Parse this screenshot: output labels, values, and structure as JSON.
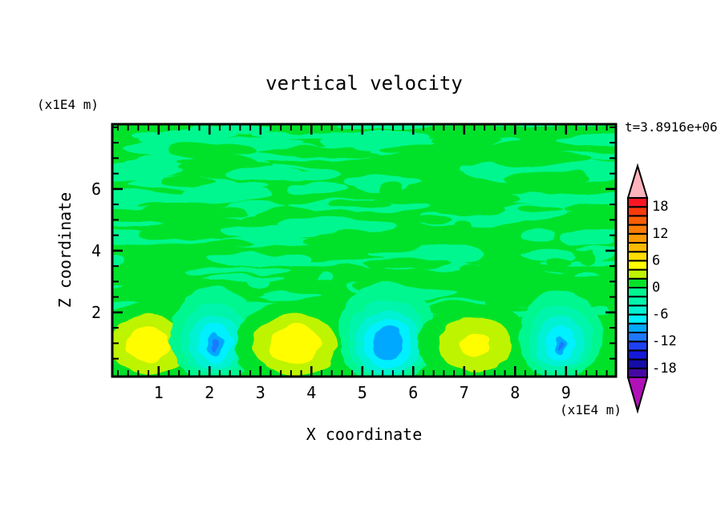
{
  "title": "vertical velocity",
  "time_label": "t=3.8916e+06",
  "axes": {
    "x": {
      "label": "X coordinate",
      "unit": "(x1E4 m)",
      "major_ticks": [
        1,
        2,
        3,
        4,
        5,
        6,
        7,
        8,
        9
      ],
      "minor_step": 0.2,
      "range": [
        0.09,
        9.98
      ]
    },
    "z": {
      "label": "Z coordinate",
      "unit": "(x1E4 m)",
      "major_ticks": [
        2,
        4,
        6
      ],
      "minor_step": 0.5,
      "range": [
        -0.08,
        8.1
      ]
    }
  },
  "colorbar": {
    "min": -20,
    "max": 20,
    "step": 2,
    "tick_labels": [
      18,
      12,
      6,
      0,
      -6,
      -12,
      -18
    ],
    "colors": [
      "#4609A5",
      "#150DA8",
      "#1518D7",
      "#1E41F5",
      "#1E78FF",
      "#00A8FF",
      "#00F0FF",
      "#00F2D2",
      "#00F5AC",
      "#00F78F",
      "#06E22A",
      "#BEF400",
      "#FFFD00",
      "#FFDE00",
      "#FFBB00",
      "#FE9B01",
      "#FC7D01",
      "#FB5E02",
      "#F83A0C",
      "#FA1723"
    ],
    "under_color": "#B011B8",
    "over_color": "#FFB3BC"
  },
  "chart_data": {
    "type": "filled-contour",
    "field": "vertical velocity",
    "contour_interval": 2,
    "level_min": -20,
    "level_max": 20,
    "background_level_band": [
      0,
      2
    ],
    "background_color": "#06E22A",
    "mottle_level_band": [
      -2,
      0
    ],
    "mottle_color": "#00F78F",
    "features": [
      {
        "name": "updraft-1",
        "x": 0.8,
        "z": 0.95,
        "rings": [
          {
            "level": 0,
            "rx": 1.1,
            "rz": 1.35
          },
          {
            "level": 2,
            "rx": 0.76,
            "rz": 0.94
          },
          {
            "level": 4,
            "rx": 0.44,
            "rz": 0.55
          }
        ]
      },
      {
        "name": "downdraft-1",
        "x": 2.1,
        "z": 1.0,
        "rings": [
          {
            "level": -2,
            "rx": 0.87,
            "rz": 1.56,
            "dz": 0.25
          },
          {
            "level": -4,
            "rx": 0.66,
            "rz": 1.17,
            "dz": 0.15
          },
          {
            "level": -6,
            "rx": 0.5,
            "rz": 0.88,
            "dz": 0.05
          },
          {
            "level": -8,
            "rx": 0.33,
            "rz": 0.64
          },
          {
            "level": -10,
            "rx": 0.16,
            "rz": 0.42,
            "dz": -0.05
          },
          {
            "level": -12,
            "rx": 0.065,
            "rz": 0.26,
            "dz": -0.05
          }
        ]
      },
      {
        "name": "updraft-2",
        "x": 3.68,
        "z": 0.95,
        "rings": [
          {
            "level": 0,
            "rx": 1.18,
            "rz": 1.43
          },
          {
            "level": 2,
            "rx": 0.82,
            "rz": 0.99
          },
          {
            "level": 4,
            "rx": 0.5,
            "rz": 0.62
          }
        ]
      },
      {
        "name": "downdraft-2",
        "x": 5.49,
        "z": 1.0,
        "rings": [
          {
            "level": -2,
            "rx": 0.94,
            "rz": 1.69,
            "dz": 0.3
          },
          {
            "level": -4,
            "rx": 0.76,
            "rz": 1.3,
            "dz": 0.15
          },
          {
            "level": -6,
            "rx": 0.63,
            "rz": 1.04,
            "dz": 0.05
          },
          {
            "level": -8,
            "rx": 0.47,
            "rz": 0.83
          },
          {
            "level": -10,
            "rx": 0.3,
            "rz": 0.6,
            "dz": -0.03
          }
        ]
      },
      {
        "name": "updraft-3",
        "x": 7.22,
        "z": 0.95,
        "rings": [
          {
            "level": 0,
            "rx": 1.13,
            "rz": 1.35
          },
          {
            "level": 2,
            "rx": 0.72,
            "rz": 0.88
          },
          {
            "level": 4,
            "rx": 0.29,
            "rz": 0.37
          }
        ]
      },
      {
        "name": "downdraft-3",
        "x": 8.9,
        "z": 1.0,
        "rings": [
          {
            "level": -2,
            "rx": 0.82,
            "rz": 1.45,
            "dz": 0.25
          },
          {
            "level": -4,
            "rx": 0.63,
            "rz": 1.09,
            "dz": 0.12
          },
          {
            "level": -6,
            "rx": 0.47,
            "rz": 0.83,
            "dz": 0.03
          },
          {
            "level": -8,
            "rx": 0.28,
            "rz": 0.57
          },
          {
            "level": -10,
            "rx": 0.1,
            "rz": 0.31,
            "dz": -0.05
          },
          {
            "level": -12,
            "rx": 0.045,
            "rz": 0.16,
            "dz": -0.06
          }
        ]
      }
    ],
    "mottle": {
      "bands": [
        {
          "z0": 6.5,
          "z1": 8.2,
          "count": 30,
          "rx0": 0.3,
          "rx1": 1.7,
          "ry0": 0.1,
          "ry1": 0.3,
          "cuts": 18
        },
        {
          "z0": 4.9,
          "z1": 6.5,
          "count": 30,
          "rx0": 0.25,
          "rx1": 1.5,
          "ry0": 0.1,
          "ry1": 0.28,
          "cuts": 18
        },
        {
          "z0": 3.3,
          "z1": 4.9,
          "count": 26,
          "rx0": 0.2,
          "rx1": 1.25,
          "ry0": 0.09,
          "ry1": 0.26,
          "cuts": 16
        },
        {
          "z0": 1.8,
          "z1": 3.3,
          "count": 20,
          "rx0": 0.15,
          "rx1": 0.95,
          "ry0": 0.08,
          "ry1": 0.22,
          "cuts": 14
        },
        {
          "z0": 1.1,
          "z1": 1.8,
          "count": 8,
          "rx0": 0.1,
          "rx1": 0.6,
          "ry0": 0.07,
          "ry1": 0.18,
          "cuts": 5
        }
      ]
    }
  }
}
